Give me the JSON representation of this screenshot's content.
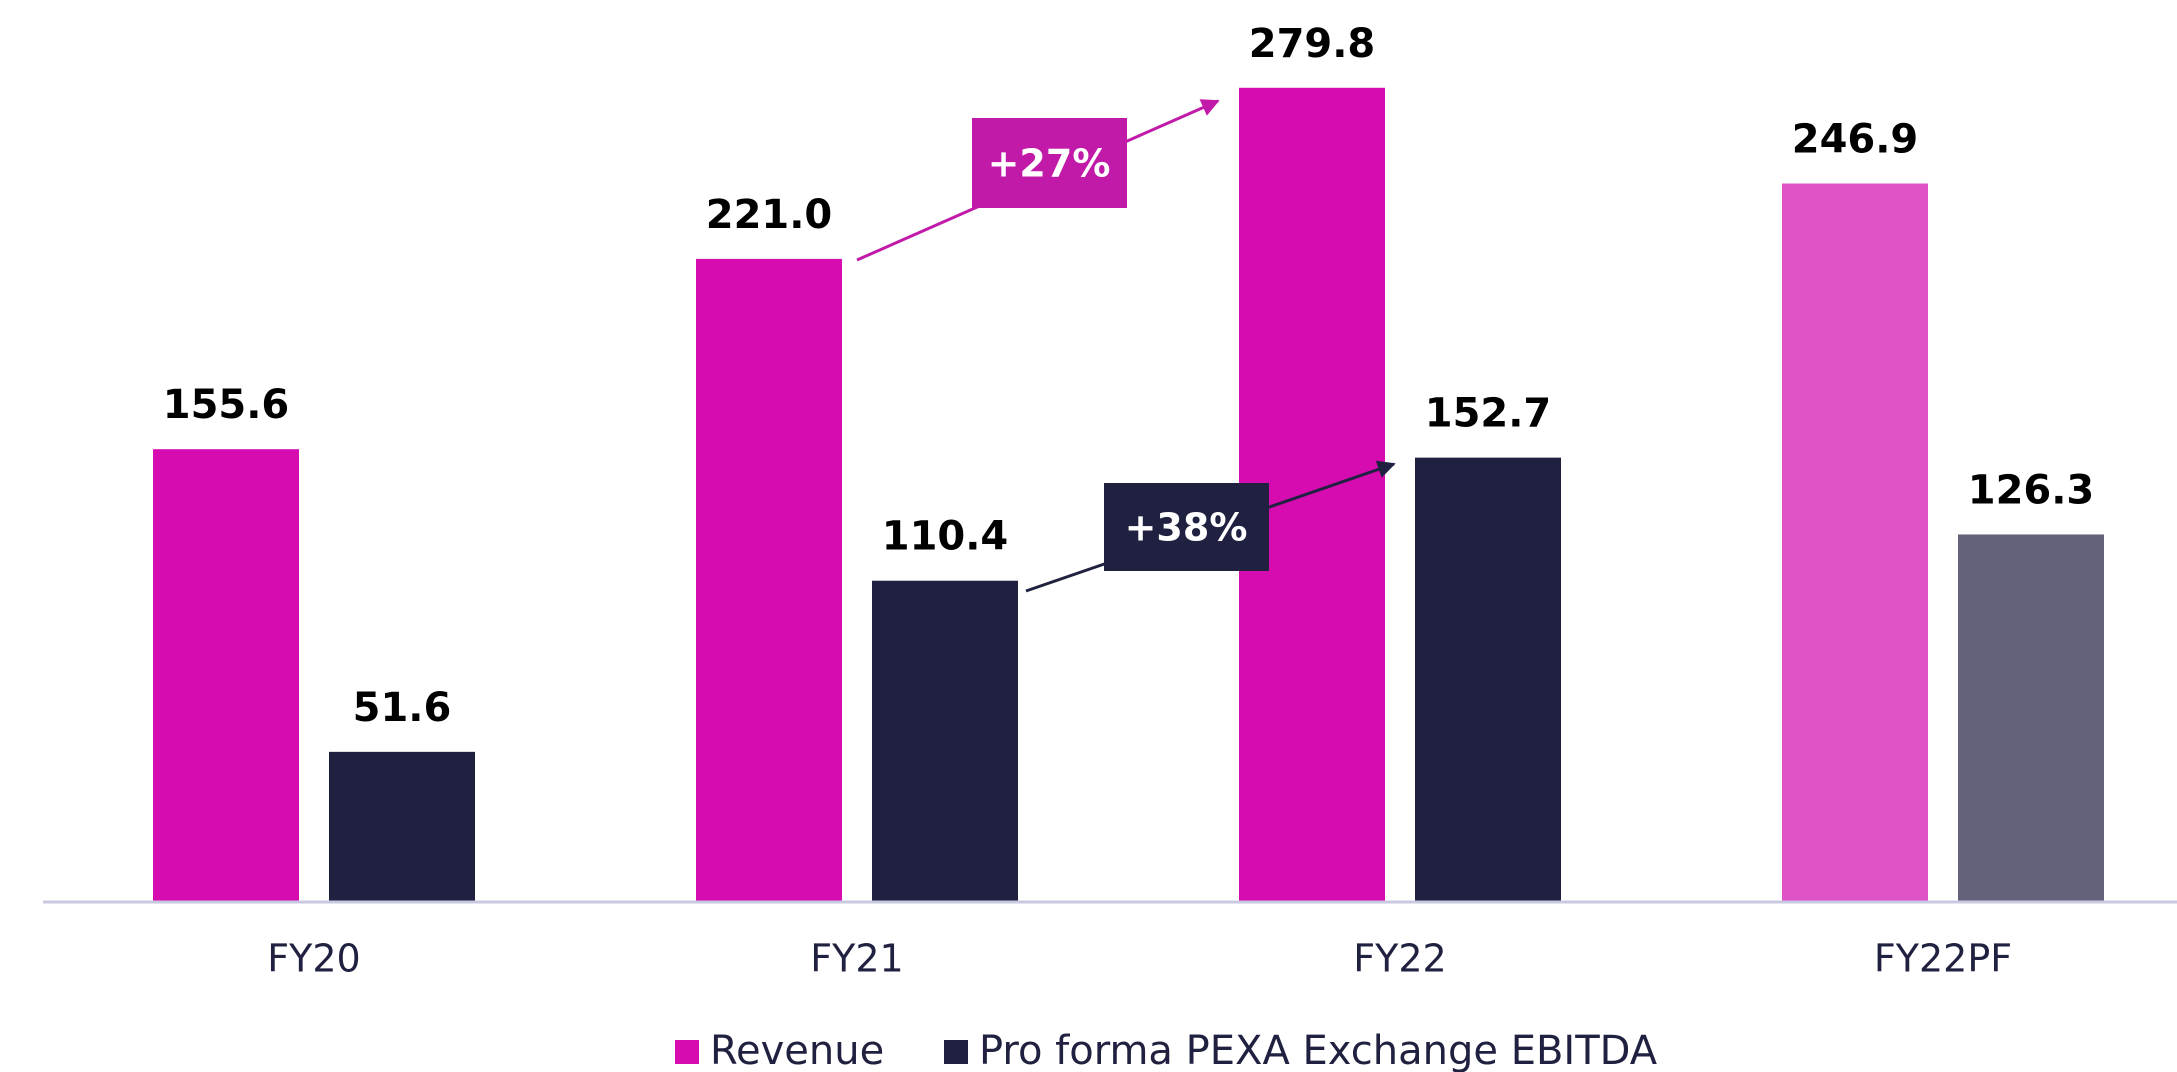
{
  "chart_data": {
    "type": "bar",
    "categories": [
      "FY20",
      "FY21",
      "FY22",
      "FY22PF"
    ],
    "series": [
      {
        "name": "Revenue",
        "color": "#d60bb0",
        "colors": [
          "#d60bb0",
          "#d60bb0",
          "#d60bb0",
          "#e052c8"
        ],
        "values": [
          155.6,
          221.0,
          279.8,
          246.9
        ],
        "value_labels": [
          "155.6",
          "221.0",
          "279.8",
          "246.9"
        ]
      },
      {
        "name": "Pro forma PEXA Exchange EBITDA",
        "color": "#202140",
        "colors": [
          "#202140",
          "#202140",
          "#202140",
          "#62627a"
        ],
        "values": [
          51.6,
          110.4,
          152.7,
          126.3
        ],
        "value_labels": [
          "51.6",
          "110.4",
          "152.7",
          "126.3"
        ]
      }
    ],
    "ylim": [
      0,
      300
    ],
    "annotations": [
      "+27%",
      "+38%"
    ],
    "legend": "bottom"
  }
}
